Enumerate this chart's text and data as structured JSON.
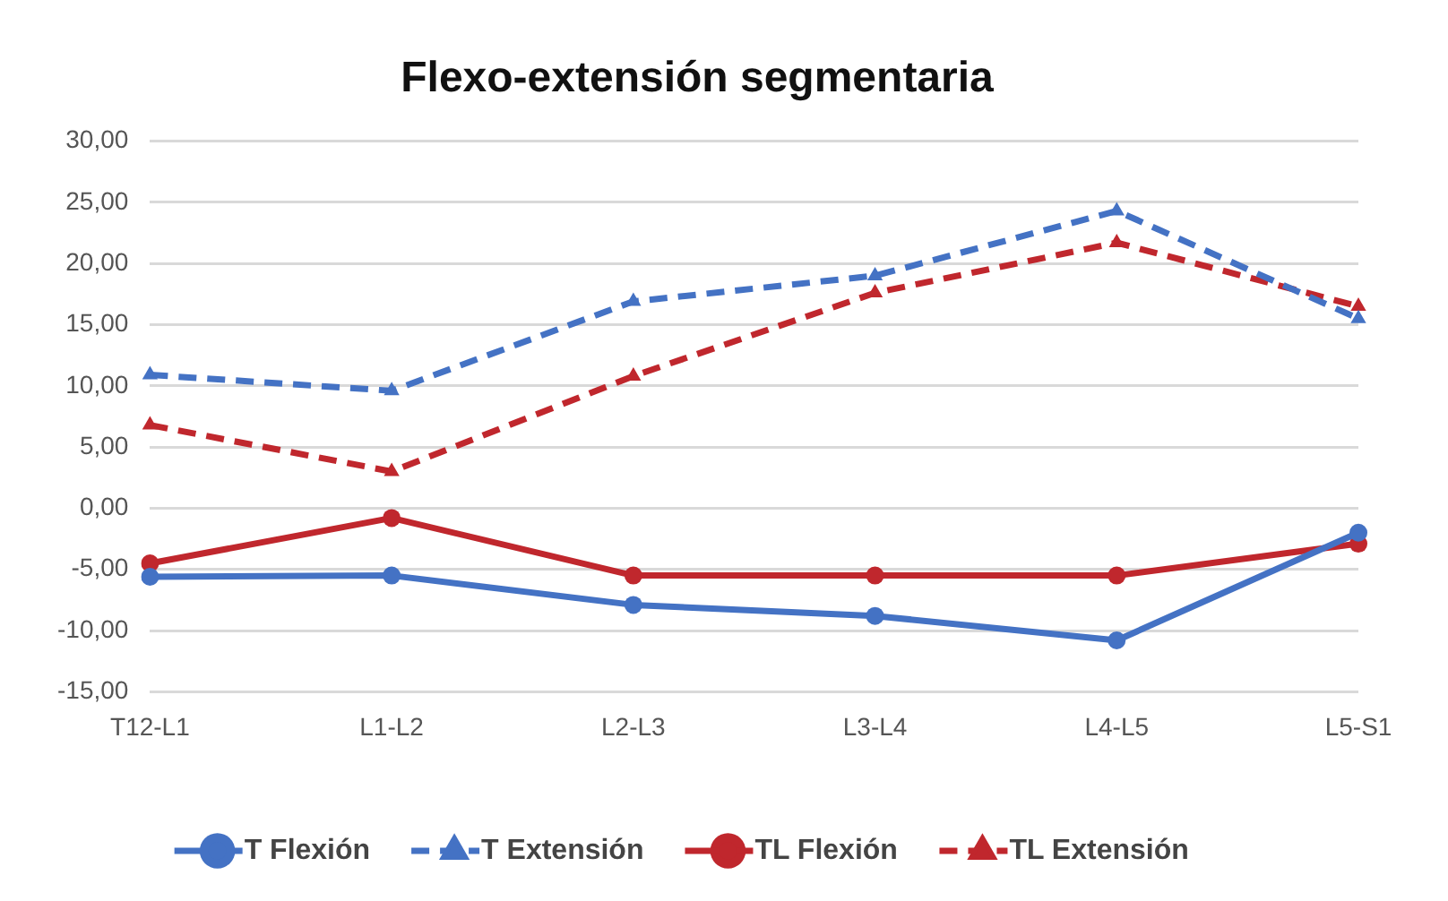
{
  "chart_data": {
    "type": "line",
    "title": "Flexo-extensión segmentaria",
    "categories": [
      "T12-L1",
      "L1-L2",
      "L2-L3",
      "L3-L4",
      "L4-L5",
      "L5-S1"
    ],
    "series": [
      {
        "name": "T Flexión",
        "color": "#4472c4",
        "values": [
          -5.6,
          -5.5,
          -7.9,
          -8.8,
          -10.8,
          -2.0
        ],
        "marker": "circle",
        "line_style": "solid"
      },
      {
        "name": "T Extensión",
        "color": "#4472c4",
        "values": [
          10.9,
          9.6,
          16.9,
          19.0,
          24.3,
          15.5
        ],
        "marker": "triangle",
        "line_style": "dashed"
      },
      {
        "name": "TL Flexión",
        "color": "#c0272d",
        "values": [
          -4.5,
          -0.8,
          -5.5,
          -5.5,
          -5.5,
          -2.9
        ],
        "marker": "circle",
        "line_style": "solid"
      },
      {
        "name": "TL Extensión",
        "color": "#c0272d",
        "values": [
          6.8,
          3.0,
          10.8,
          17.6,
          21.7,
          16.5
        ],
        "marker": "triangle",
        "line_style": "dashed"
      }
    ],
    "ylim": [
      -15,
      30
    ],
    "yticks": [
      {
        "value": -15,
        "label": "-15,00"
      },
      {
        "value": -10,
        "label": "-10,00"
      },
      {
        "value": -5,
        "label": "-5,00"
      },
      {
        "value": 0,
        "label": "0,00"
      },
      {
        "value": 5,
        "label": "5,00"
      },
      {
        "value": 10,
        "label": "10,00"
      },
      {
        "value": 15,
        "label": "15,00"
      },
      {
        "value": 20,
        "label": "20,00"
      },
      {
        "value": 25,
        "label": "25,00"
      },
      {
        "value": 30,
        "label": "30,00"
      }
    ],
    "grid": "y",
    "legend": "bottom"
  }
}
